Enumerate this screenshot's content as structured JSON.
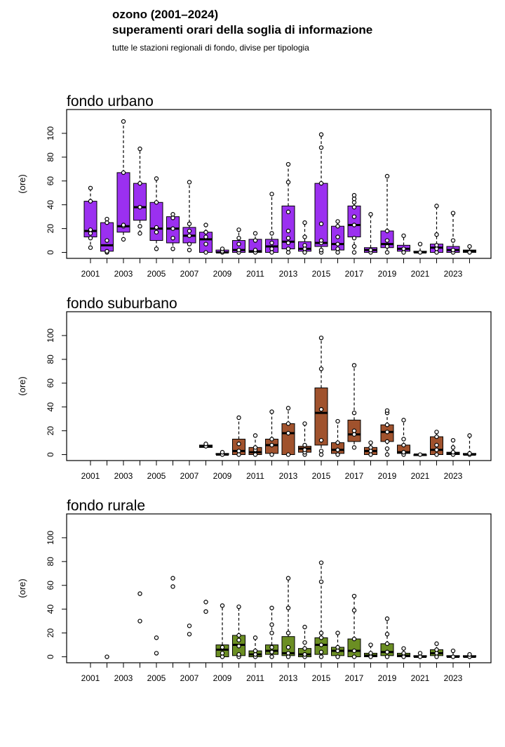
{
  "header": {
    "title": "ozono (2001–2024)",
    "subtitle": "superamenti orari della soglia di informazione",
    "note": "tutte le stazioni regionali di fondo, divise per tipologia"
  },
  "chart_data": [
    {
      "type": "boxplot",
      "title": "fondo urbano",
      "ylabel": "(ore)",
      "color": "#9b30f0",
      "ylim": [
        -5,
        120
      ],
      "y_ticks": [
        0,
        20,
        40,
        60,
        80,
        100
      ],
      "x_tick_labels": [
        "2001",
        "2003",
        "2005",
        "2007",
        "2009",
        "2011",
        "2013",
        "2015",
        "2017",
        "2019",
        "2021",
        "2023"
      ],
      "years": [
        2001,
        2002,
        2003,
        2004,
        2005,
        2006,
        2007,
        2008,
        2009,
        2010,
        2011,
        2012,
        2013,
        2014,
        2015,
        2016,
        2017,
        2018,
        2019,
        2020,
        2021,
        2022,
        2023,
        2024
      ],
      "boxes": [
        {
          "year": 2001,
          "q1": 13,
          "median": 18,
          "q3": 43,
          "whisker_low": 4,
          "whisker_high": 54,
          "points": [
            4,
            12,
            16,
            19,
            43,
            54
          ]
        },
        {
          "year": 2002,
          "q1": 1,
          "median": 6,
          "q3": 25,
          "whisker_low": 0,
          "whisker_high": 28,
          "points": [
            0,
            1,
            10,
            25,
            28
          ]
        },
        {
          "year": 2003,
          "q1": 17,
          "median": 22,
          "q3": 67,
          "whisker_low": 11,
          "whisker_high": 110,
          "points": [
            11,
            22,
            23,
            67,
            110
          ]
        },
        {
          "year": 2004,
          "q1": 27,
          "median": 38,
          "q3": 58,
          "whisker_low": 16,
          "whisker_high": 87,
          "points": [
            16,
            22,
            38,
            58,
            87
          ]
        },
        {
          "year": 2005,
          "q1": 10,
          "median": 20,
          "q3": 42,
          "whisker_low": 3,
          "whisker_high": 62,
          "points": [
            3,
            17,
            21,
            42,
            62
          ]
        },
        {
          "year": 2006,
          "q1": 8,
          "median": 20,
          "q3": 30,
          "whisker_low": 3,
          "whisker_high": 32,
          "points": [
            3,
            12,
            20,
            29,
            32
          ]
        },
        {
          "year": 2007,
          "q1": 8,
          "median": 14,
          "q3": 21,
          "whisker_low": 2,
          "whisker_high": 59,
          "points": [
            2,
            7,
            14,
            18,
            24,
            59
          ]
        },
        {
          "year": 2008,
          "q1": 0,
          "median": 11,
          "q3": 17,
          "whisker_low": 0,
          "whisker_high": 23,
          "points": [
            0,
            7,
            13,
            17,
            23
          ]
        },
        {
          "year": 2009,
          "q1": 0,
          "median": 0,
          "q3": 2,
          "whisker_low": 0,
          "whisker_high": 3,
          "points": [
            0,
            1,
            3
          ]
        },
        {
          "year": 2010,
          "q1": 0,
          "median": 2,
          "q3": 10,
          "whisker_low": 0,
          "whisker_high": 19,
          "points": [
            0,
            2,
            7,
            12,
            19
          ]
        },
        {
          "year": 2011,
          "q1": 0,
          "median": 1,
          "q3": 11,
          "whisker_low": 0,
          "whisker_high": 16,
          "points": [
            0,
            2,
            10,
            16
          ]
        },
        {
          "year": 2012,
          "q1": 0,
          "median": 5,
          "q3": 11,
          "whisker_low": 0,
          "whisker_high": 49,
          "points": [
            0,
            3,
            8,
            16,
            49
          ]
        },
        {
          "year": 2013,
          "q1": 3,
          "median": 9,
          "q3": 39,
          "whisker_low": 0,
          "whisker_high": 74,
          "points": [
            0,
            3,
            8,
            12,
            18,
            34,
            59,
            74
          ]
        },
        {
          "year": 2014,
          "q1": 1,
          "median": 3,
          "q3": 9,
          "whisker_low": 0,
          "whisker_high": 25,
          "points": [
            0,
            3,
            6,
            13,
            25
          ]
        },
        {
          "year": 2015,
          "q1": 5,
          "median": 8,
          "q3": 58,
          "whisker_low": 0,
          "whisker_high": 99,
          "points": [
            0,
            2,
            8,
            10,
            24,
            58,
            88,
            99
          ]
        },
        {
          "year": 2016,
          "q1": 2,
          "median": 7,
          "q3": 22,
          "whisker_low": 0,
          "whisker_high": 26,
          "points": [
            0,
            3,
            7,
            13,
            22,
            26
          ]
        },
        {
          "year": 2017,
          "q1": 13,
          "median": 23,
          "q3": 39,
          "whisker_low": 0,
          "whisker_high": 48,
          "points": [
            0,
            5,
            12,
            23,
            30,
            38,
            42,
            45,
            48
          ]
        },
        {
          "year": 2018,
          "q1": 0,
          "median": 2,
          "q3": 4,
          "whisker_low": 0,
          "whisker_high": 32,
          "points": [
            0,
            2,
            32
          ]
        },
        {
          "year": 2019,
          "q1": 4,
          "median": 7,
          "q3": 18,
          "whisker_low": 0,
          "whisker_high": 64,
          "points": [
            0,
            5,
            10,
            18,
            64
          ]
        },
        {
          "year": 2020,
          "q1": 1,
          "median": 3,
          "q3": 6,
          "whisker_low": 0,
          "whisker_high": 14,
          "points": [
            0,
            3,
            14
          ]
        },
        {
          "year": 2021,
          "q1": 0,
          "median": 0,
          "q3": 1,
          "whisker_low": 0,
          "whisker_high": 7,
          "points": [
            0,
            7
          ]
        },
        {
          "year": 2022,
          "q1": 0,
          "median": 4,
          "q3": 7,
          "whisker_low": 0,
          "whisker_high": 39,
          "points": [
            0,
            3,
            6,
            15,
            39
          ]
        },
        {
          "year": 2023,
          "q1": 0,
          "median": 2,
          "q3": 5,
          "whisker_low": 0,
          "whisker_high": 33,
          "points": [
            0,
            2,
            10,
            33
          ]
        },
        {
          "year": 2024,
          "q1": 0,
          "median": 1,
          "q3": 2,
          "whisker_low": 0,
          "whisker_high": 5,
          "points": [
            0,
            5
          ]
        }
      ]
    },
    {
      "type": "boxplot",
      "title": "fondo suburbano",
      "ylabel": "(ore)",
      "color": "#a0522d",
      "ylim": [
        -5,
        120
      ],
      "y_ticks": [
        0,
        20,
        40,
        60,
        80,
        100
      ],
      "x_tick_labels": [
        "2001",
        "2003",
        "2005",
        "2007",
        "2009",
        "2011",
        "2013",
        "2015",
        "2017",
        "2019",
        "2021",
        "2023"
      ],
      "years": [
        2001,
        2002,
        2003,
        2004,
        2005,
        2006,
        2007,
        2008,
        2009,
        2010,
        2011,
        2012,
        2013,
        2014,
        2015,
        2016,
        2017,
        2018,
        2019,
        2020,
        2021,
        2022,
        2023,
        2024
      ],
      "boxes": [
        {
          "year": 2008,
          "q1": 6,
          "median": 7,
          "q3": 8,
          "whisker_low": 6,
          "whisker_high": 9,
          "points": [
            7,
            9
          ]
        },
        {
          "year": 2009,
          "q1": 0,
          "median": 0,
          "q3": 1,
          "whisker_low": 0,
          "whisker_high": 2,
          "points": [
            0,
            2
          ]
        },
        {
          "year": 2010,
          "q1": 0,
          "median": 3,
          "q3": 13,
          "whisker_low": 0,
          "whisker_high": 31,
          "points": [
            0,
            3,
            9,
            31
          ]
        },
        {
          "year": 2011,
          "q1": 0,
          "median": 2,
          "q3": 6,
          "whisker_low": 0,
          "whisker_high": 16,
          "points": [
            0,
            4,
            6,
            16
          ]
        },
        {
          "year": 2012,
          "q1": 1,
          "median": 8,
          "q3": 13,
          "whisker_low": 0,
          "whisker_high": 36,
          "points": [
            0,
            8,
            13,
            36
          ]
        },
        {
          "year": 2013,
          "q1": 0,
          "median": 18,
          "q3": 26,
          "whisker_low": 0,
          "whisker_high": 39,
          "points": [
            0,
            18,
            26,
            39
          ]
        },
        {
          "year": 2014,
          "q1": 2,
          "median": 5,
          "q3": 7,
          "whisker_low": 0,
          "whisker_high": 26,
          "points": [
            0,
            2,
            4,
            8,
            26
          ]
        },
        {
          "year": 2015,
          "q1": 8,
          "median": 35,
          "q3": 56,
          "whisker_low": 0,
          "whisker_high": 98,
          "points": [
            0,
            3,
            12,
            38,
            72,
            98
          ]
        },
        {
          "year": 2016,
          "q1": 1,
          "median": 4,
          "q3": 10,
          "whisker_low": 0,
          "whisker_high": 28,
          "points": [
            0,
            4,
            10,
            28
          ]
        },
        {
          "year": 2017,
          "q1": 11,
          "median": 17,
          "q3": 29,
          "whisker_low": 6,
          "whisker_high": 75,
          "points": [
            6,
            17,
            20,
            35,
            75
          ]
        },
        {
          "year": 2018,
          "q1": 0,
          "median": 3,
          "q3": 6,
          "whisker_low": 0,
          "whisker_high": 10,
          "points": [
            0,
            3,
            6,
            10
          ]
        },
        {
          "year": 2019,
          "q1": 11,
          "median": 19,
          "q3": 25,
          "whisker_low": 0,
          "whisker_high": 37,
          "points": [
            0,
            5,
            11,
            19,
            25,
            35,
            37
          ]
        },
        {
          "year": 2020,
          "q1": 1,
          "median": 2,
          "q3": 8,
          "whisker_low": 0,
          "whisker_high": 29,
          "points": [
            0,
            2,
            8,
            13,
            29
          ]
        },
        {
          "year": 2021,
          "q1": 0,
          "median": 0,
          "q3": 0,
          "whisker_low": 0,
          "whisker_high": 1,
          "points": [
            0
          ]
        },
        {
          "year": 2022,
          "q1": 0,
          "median": 4,
          "q3": 15,
          "whisker_low": 0,
          "whisker_high": 19,
          "points": [
            0,
            4,
            8,
            15,
            19
          ]
        },
        {
          "year": 2023,
          "q1": 0,
          "median": 1,
          "q3": 2,
          "whisker_low": 0,
          "whisker_high": 12,
          "points": [
            0,
            2,
            6,
            12
          ]
        },
        {
          "year": 2024,
          "q1": 0,
          "median": 0,
          "q3": 1,
          "whisker_low": 0,
          "whisker_high": 16,
          "points": [
            0,
            1,
            16
          ]
        }
      ]
    },
    {
      "type": "boxplot",
      "title": "fondo rurale",
      "ylabel": "(ore)",
      "color": "#6b8e23",
      "ylim": [
        -5,
        120
      ],
      "y_ticks": [
        0,
        20,
        40,
        60,
        80,
        100
      ],
      "x_tick_labels": [
        "2001",
        "2003",
        "2005",
        "2007",
        "2009",
        "2011",
        "2013",
        "2015",
        "2017",
        "2019",
        "2021",
        "2023"
      ],
      "years": [
        2001,
        2002,
        2003,
        2004,
        2005,
        2006,
        2007,
        2008,
        2009,
        2010,
        2011,
        2012,
        2013,
        2014,
        2015,
        2016,
        2017,
        2018,
        2019,
        2020,
        2021,
        2022,
        2023,
        2024
      ],
      "boxes": [
        {
          "year": 2002,
          "points": [
            0
          ]
        },
        {
          "year": 2004,
          "points": [
            30,
            53
          ]
        },
        {
          "year": 2005,
          "points": [
            3,
            16
          ]
        },
        {
          "year": 2006,
          "points": [
            59,
            66
          ]
        },
        {
          "year": 2007,
          "points": [
            19,
            26
          ]
        },
        {
          "year": 2008,
          "points": [
            38,
            46
          ]
        },
        {
          "year": 2009,
          "q1": 0,
          "median": 6,
          "q3": 10,
          "whisker_low": 0,
          "whisker_high": 43,
          "points": [
            0,
            3,
            8,
            43
          ]
        },
        {
          "year": 2010,
          "q1": 1,
          "median": 10,
          "q3": 18,
          "whisker_low": 0,
          "whisker_high": 42,
          "points": [
            0,
            2,
            9,
            14,
            18,
            42
          ]
        },
        {
          "year": 2011,
          "q1": 0,
          "median": 2,
          "q3": 5,
          "whisker_low": 0,
          "whisker_high": 16,
          "points": [
            0,
            2,
            5,
            16
          ]
        },
        {
          "year": 2012,
          "q1": 2,
          "median": 5,
          "q3": 10,
          "whisker_low": 0,
          "whisker_high": 41,
          "points": [
            0,
            4,
            8,
            20,
            27,
            41
          ]
        },
        {
          "year": 2013,
          "q1": 1,
          "median": 3,
          "q3": 17,
          "whisker_low": 0,
          "whisker_high": 66,
          "points": [
            0,
            3,
            8,
            20,
            41,
            66
          ]
        },
        {
          "year": 2014,
          "q1": 0,
          "median": 2,
          "q3": 7,
          "whisker_low": 0,
          "whisker_high": 25,
          "points": [
            0,
            2,
            7,
            12,
            25
          ]
        },
        {
          "year": 2015,
          "q1": 2,
          "median": 10,
          "q3": 16,
          "whisker_low": 0,
          "whisker_high": 79,
          "points": [
            0,
            4,
            10,
            16,
            20,
            63,
            79
          ]
        },
        {
          "year": 2016,
          "q1": 1,
          "median": 5,
          "q3": 8,
          "whisker_low": 0,
          "whisker_high": 20,
          "points": [
            0,
            5,
            8,
            20
          ]
        },
        {
          "year": 2017,
          "q1": 0,
          "median": 5,
          "q3": 15,
          "whisker_low": 0,
          "whisker_high": 51,
          "points": [
            0,
            5,
            15,
            39,
            51
          ]
        },
        {
          "year": 2018,
          "q1": 0,
          "median": 1,
          "q3": 3,
          "whisker_low": 0,
          "whisker_high": 10,
          "points": [
            0,
            3,
            10
          ]
        },
        {
          "year": 2019,
          "q1": 1,
          "median": 4,
          "q3": 11,
          "whisker_low": 0,
          "whisker_high": 32,
          "points": [
            0,
            4,
            11,
            19,
            32
          ]
        },
        {
          "year": 2020,
          "q1": 0,
          "median": 1,
          "q3": 3,
          "whisker_low": 0,
          "whisker_high": 7,
          "points": [
            0,
            3,
            7
          ]
        },
        {
          "year": 2021,
          "q1": 0,
          "median": 0,
          "q3": 1,
          "whisker_low": 0,
          "whisker_high": 3,
          "points": [
            0,
            3
          ]
        },
        {
          "year": 2022,
          "q1": 1,
          "median": 3,
          "q3": 6,
          "whisker_low": 0,
          "whisker_high": 11,
          "points": [
            0,
            3,
            6,
            11
          ]
        },
        {
          "year": 2023,
          "q1": 0,
          "median": 0,
          "q3": 1,
          "whisker_low": 0,
          "whisker_high": 5,
          "points": [
            0,
            5
          ]
        },
        {
          "year": 2024,
          "q1": 0,
          "median": 0,
          "q3": 1,
          "whisker_low": 0,
          "whisker_high": 2,
          "points": [
            0,
            2
          ]
        }
      ]
    }
  ]
}
